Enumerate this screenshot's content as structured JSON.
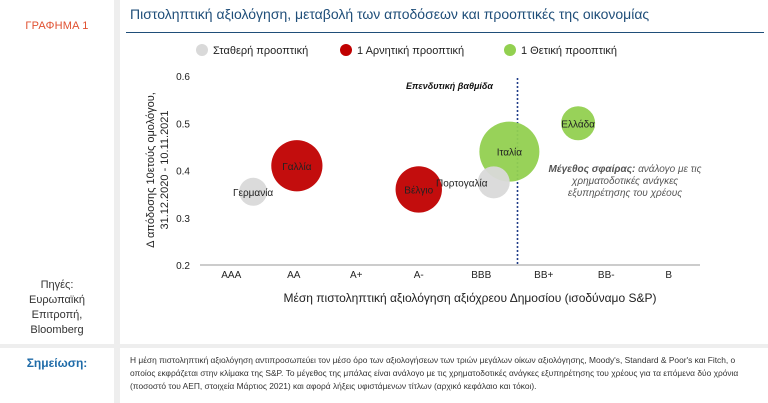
{
  "figure_label": "ΓΡΑΦΗΜΑ 1",
  "chart_title": "Πιστοληπτική αξιολόγηση, μεταβολή των αποδόσεων και προοπτικές της οικονομίας",
  "sources": [
    "Πηγές:",
    "Ευρωπαϊκή",
    "Επιτροπή,",
    "Bloomberg"
  ],
  "note": {
    "title": "Σημείωση:",
    "text": "Η μέση πιστοληπτική αξιολόγηση αντιπροσωπεύει τον μέσο όρο των αξιολογήσεων των τριών μεγάλων οίκων αξιολόγησης, Moody's, Standard & Poor's και Fitch, ο οποίος εκφράζεται στην κλίμακα της S&P. Το μέγεθος της μπάλας είναι ανάλογο με τις χρηματοδοτικές ανάγκες εξυπηρέτησης του χρέους για τα επόμενα δύο χρόνια (ποσοστό του ΑΕΠ, στοιχεία Μάρτιος 2021) και αφορά λήξεις υφιστάμενων τίτλων (αρχικό κεφάλαιο και τόκοι)."
  },
  "colors": {
    "stable": "#d9d9d9",
    "negative": "#c00000",
    "positive": "#92d050",
    "title": "#1f4e79",
    "divider": "#1f3c88"
  },
  "chart_data": {
    "type": "scatter",
    "title": "Πιστοληπτική αξιολόγηση, μεταβολή των αποδόσεων και προοπτικές της οικονομίας",
    "xlabel": "Μέση πιστοληπτική αξιολόγηση αξιόχρεου Δημοσίου (ισοδύναμο S&P)",
    "ylabel": [
      "Δ απόδοσης 10ετούς ομολόγου,",
      "31.12.2020 - 10.11.2021"
    ],
    "categories": [
      "AAA",
      "AA",
      "A+",
      "A-",
      "BBB",
      "BB+",
      "BB-",
      "B"
    ],
    "ylim": [
      0.2,
      0.6
    ],
    "yticks": [
      "0.2",
      "0.3",
      "0.4",
      "0.5",
      "0.6"
    ],
    "grid": false,
    "legend_position": "top",
    "series": [
      {
        "name": "Σταθερή προοπτική",
        "color": "#d9d9d9"
      },
      {
        "name": "1 Αρνητική προοπτική",
        "color": "#c00000"
      },
      {
        "name": "1 Θετική προοπτική",
        "color": "#92d050"
      }
    ],
    "points": [
      {
        "label": "Γερμανία",
        "x": 0.35,
        "y": 0.355,
        "size": 0.2,
        "outlook": "stable"
      },
      {
        "label": "Γαλλία",
        "x": 1.05,
        "y": 0.41,
        "size": 0.78,
        "outlook": "negative"
      },
      {
        "label": "Βέλγιο",
        "x": 3.0,
        "y": 0.36,
        "size": 0.66,
        "outlook": "negative"
      },
      {
        "label": "Πορτογαλία",
        "x": 4.2,
        "y": 0.375,
        "size": 0.3,
        "outlook": "stable"
      },
      {
        "label": "Ιταλία",
        "x": 4.45,
        "y": 0.44,
        "size": 1.0,
        "outlook": "positive"
      },
      {
        "label": "Ελλάδα",
        "x": 5.55,
        "y": 0.5,
        "size": 0.35,
        "outlook": "positive"
      }
    ],
    "divider_at": 4.58,
    "divider_label": "Επενδυτική βαθμίδα",
    "annotation": {
      "bold": "Μέγεθος σφαίρας:",
      "rest": " ανάλογο με τις",
      "lines": [
        "χρηματοδοτικές ανάγκες",
        "εξυπηρέτησης του χρέους"
      ]
    }
  }
}
